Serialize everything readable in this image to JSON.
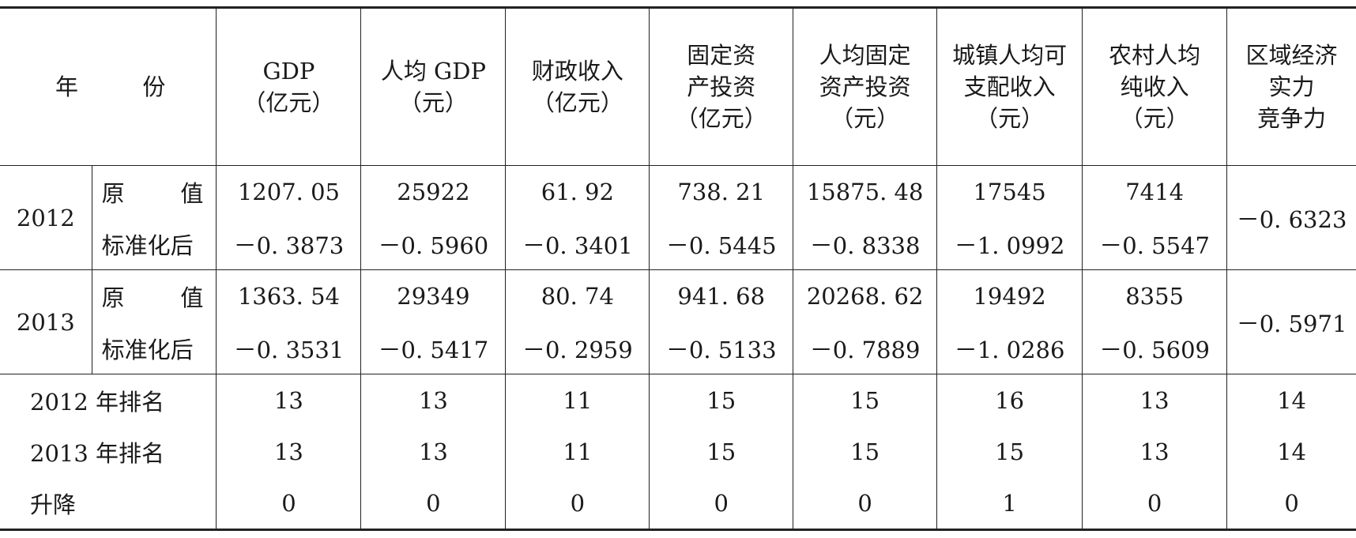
{
  "header": {
    "year": "年份",
    "year_left": "年",
    "year_right": "份",
    "cols": [
      {
        "lines": [
          "GDP",
          "（亿元）"
        ]
      },
      {
        "lines": [
          "人均 GDP",
          "（元）"
        ]
      },
      {
        "lines": [
          "财政收入",
          "（亿元）"
        ]
      },
      {
        "lines": [
          "固定资",
          "产投资",
          "（亿元）"
        ]
      },
      {
        "lines": [
          "人均固定",
          "资产投资",
          "（元）"
        ]
      },
      {
        "lines": [
          "城镇人均可",
          "支配收入",
          "（元）"
        ]
      },
      {
        "lines": [
          "农村人均",
          "纯收入",
          "（元）"
        ]
      },
      {
        "lines": [
          "区域经济",
          "实力",
          "竞争力"
        ]
      }
    ]
  },
  "years": [
    {
      "year": "2012",
      "raw_label_left": "原",
      "raw_label_right": "值",
      "std_label": "标准化后",
      "raw": [
        "1207. 05",
        "25922",
        "61. 92",
        "738. 21",
        "15875. 48",
        "17545",
        "7414"
      ],
      "std": [
        "－0. 3873",
        "－0. 5960",
        "－0. 3401",
        "－0. 5445",
        "－0. 8338",
        "－1. 0992",
        "－0. 5547"
      ],
      "competitiveness": "－0. 6323"
    },
    {
      "year": "2013",
      "raw_label_left": "原",
      "raw_label_right": "值",
      "std_label": "标准化后",
      "raw": [
        "1363. 54",
        "29349",
        "80. 74",
        "941. 68",
        "20268. 62",
        "19492",
        "8355"
      ],
      "std": [
        "－0. 3531",
        "－0. 5417",
        "－0. 2959",
        "－0. 5133",
        "－0. 7889",
        "－1. 0286",
        "－0. 5609"
      ],
      "competitiveness": "－0. 5971"
    }
  ],
  "ranks": [
    {
      "label": "2012 年排名",
      "values": [
        "13",
        "13",
        "11",
        "15",
        "15",
        "16",
        "13",
        "14"
      ]
    },
    {
      "label": "2013 年排名",
      "values": [
        "13",
        "13",
        "11",
        "15",
        "15",
        "15",
        "13",
        "14"
      ]
    },
    {
      "label": "升降",
      "values": [
        "0",
        "0",
        "0",
        "0",
        "0",
        "1",
        "0",
        "0"
      ]
    }
  ]
}
